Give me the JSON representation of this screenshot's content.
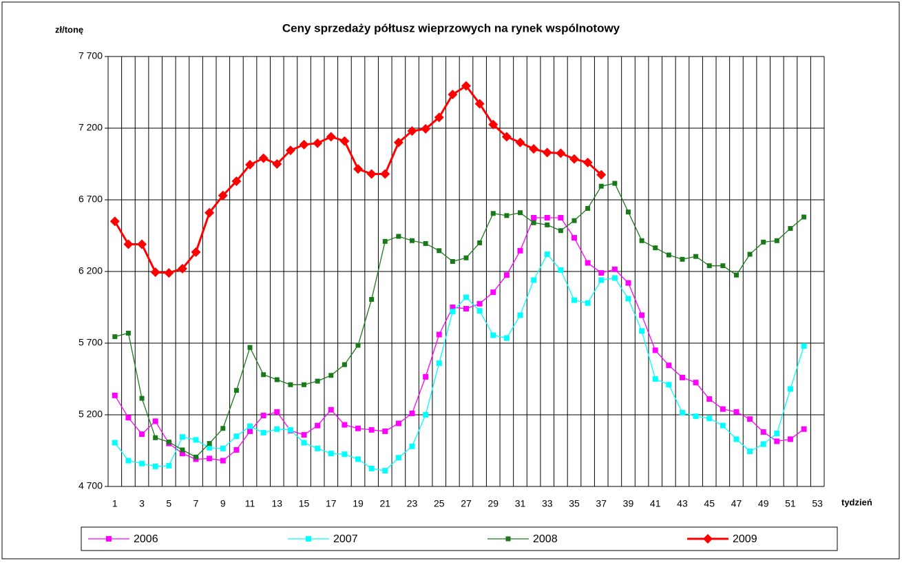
{
  "chart_data": {
    "type": "line",
    "title": "Ceny sprzedaży półtusz wieprzowych na rynek wspólnotowy",
    "y_label": "zł/tonę",
    "x_label": "tydzień",
    "categories": [
      1,
      null,
      3,
      null,
      5,
      null,
      7,
      null,
      9,
      null,
      11,
      null,
      13,
      null,
      15,
      null,
      17,
      null,
      19,
      null,
      21,
      null,
      23,
      null,
      25,
      null,
      27,
      null,
      29,
      null,
      31,
      null,
      33,
      null,
      35,
      null,
      37,
      null,
      39,
      null,
      41,
      null,
      43,
      null,
      45,
      null,
      47,
      null,
      49,
      null,
      51,
      null,
      53
    ],
    "ylim": [
      4700,
      7700
    ],
    "yticks": [
      {
        "value": 4700,
        "label": "4 700"
      },
      {
        "value": 5200,
        "label": "5 200"
      },
      {
        "value": 5700,
        "label": "5 700"
      },
      {
        "value": 6200,
        "label": "6 200"
      },
      {
        "value": 6700,
        "label": "6 700"
      },
      {
        "value": 7200,
        "label": "7 200"
      },
      {
        "value": 7700,
        "label": "7 700"
      }
    ],
    "grid": true,
    "legend": "bottom",
    "series": [
      {
        "name": "2006",
        "color": "#ff00ff",
        "marker": "square",
        "values": [
          5335,
          5180,
          5065,
          5155,
          5000,
          4930,
          4890,
          4895,
          4880,
          4955,
          5085,
          5195,
          5220,
          5090,
          5060,
          5125,
          5235,
          5130,
          5105,
          5095,
          5085,
          5140,
          5210,
          5465,
          5760,
          5950,
          5940,
          5975,
          6055,
          6175,
          6345,
          6575,
          6575,
          6575,
          6435,
          6260,
          6190,
          6215,
          6120,
          5895,
          5650,
          5545,
          5460,
          5425,
          5310,
          5240,
          5220,
          5170,
          5080,
          5015,
          5030,
          5100,
          null
        ]
      },
      {
        "name": "2007",
        "color": "#00ffff",
        "marker": "square",
        "values": [
          5005,
          4880,
          4860,
          4840,
          4845,
          5045,
          5025,
          4970,
          4965,
          5050,
          5120,
          5075,
          5100,
          5095,
          5005,
          4965,
          4930,
          4925,
          4890,
          4825,
          4810,
          4900,
          4980,
          5200,
          5560,
          5920,
          6020,
          5925,
          5755,
          5735,
          5895,
          6140,
          6320,
          6210,
          6000,
          5980,
          6140,
          6155,
          6010,
          5785,
          5450,
          5410,
          5215,
          5190,
          5175,
          5125,
          5030,
          4945,
          4995,
          5070,
          5380,
          5680,
          null
        ]
      },
      {
        "name": "2008",
        "color": "#1a7a1a",
        "marker": "square",
        "values": [
          5745,
          5770,
          5315,
          5040,
          5010,
          4955,
          4905,
          5000,
          5105,
          5370,
          5670,
          5480,
          5445,
          5410,
          5410,
          5435,
          5475,
          5550,
          5685,
          6005,
          6410,
          6445,
          6415,
          6395,
          6345,
          6270,
          6295,
          6400,
          6605,
          6590,
          6610,
          6540,
          6525,
          6485,
          6555,
          6640,
          6795,
          6815,
          6615,
          6415,
          6365,
          6315,
          6285,
          6305,
          6240,
          6240,
          6175,
          6320,
          6405,
          6415,
          6500,
          6580,
          null
        ]
      },
      {
        "name": "2009",
        "color": "#ff0000",
        "marker": "diamond",
        "values": [
          6550,
          6390,
          6390,
          6195,
          6190,
          6220,
          6335,
          6610,
          6730,
          6830,
          6945,
          6990,
          6950,
          7045,
          7085,
          7095,
          7140,
          7110,
          6915,
          6880,
          6880,
          7100,
          7180,
          7195,
          7275,
          7435,
          7495,
          7370,
          7225,
          7140,
          7100,
          7055,
          7030,
          7025,
          6985,
          6960,
          6875,
          null,
          null,
          null,
          null,
          null,
          null,
          null,
          null,
          null,
          null,
          null,
          null,
          null,
          null,
          null,
          null
        ]
      }
    ]
  }
}
